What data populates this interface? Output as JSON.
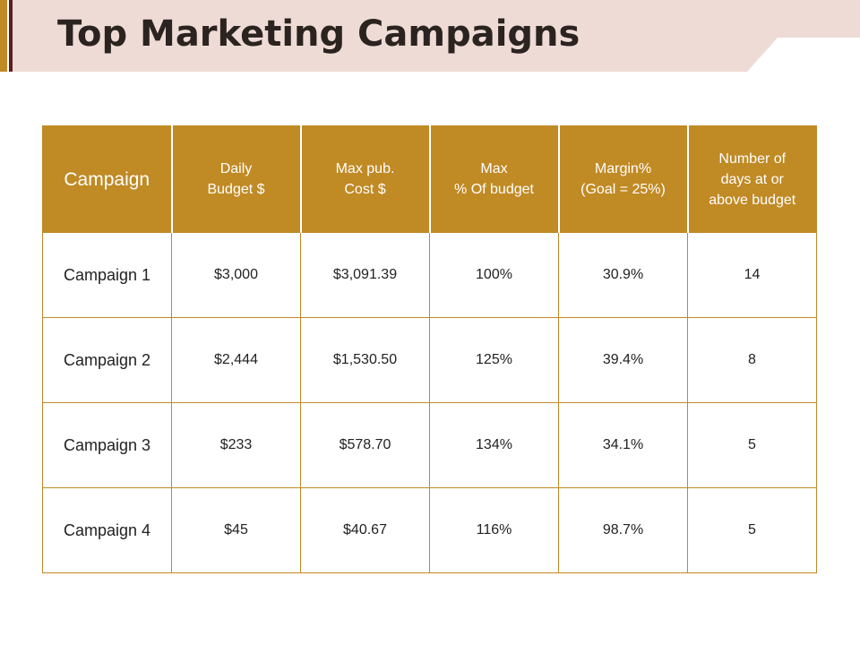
{
  "title": "Top Marketing Campaigns",
  "colors": {
    "band": "#eedbd5",
    "accent_bar": "#c08a25",
    "accent_bar_dark": "#5a1e1e",
    "header_bg": "#c08a25",
    "border": "#c08a25"
  },
  "table": {
    "headers": [
      [
        "Campaign"
      ],
      [
        "Daily",
        "Budget $"
      ],
      [
        "Max pub.",
        "Cost $"
      ],
      [
        "Max",
        "% Of budget"
      ],
      [
        "Margin%",
        "(Goal = 25%)"
      ],
      [
        "Number of",
        "days at or",
        "above budget"
      ]
    ],
    "rows": [
      [
        "Campaign 1",
        "$3,000",
        "$3,091.39",
        "100%",
        "30.9%",
        "14"
      ],
      [
        "Campaign 2",
        "$2,444",
        "$1,530.50",
        "125%",
        "39.4%",
        "8"
      ],
      [
        "Campaign 3",
        "$233",
        "$578.70",
        "134%",
        "34.1%",
        "5"
      ],
      [
        "Campaign 4",
        "$45",
        "$40.67",
        "116%",
        "98.7%",
        "5"
      ]
    ]
  }
}
